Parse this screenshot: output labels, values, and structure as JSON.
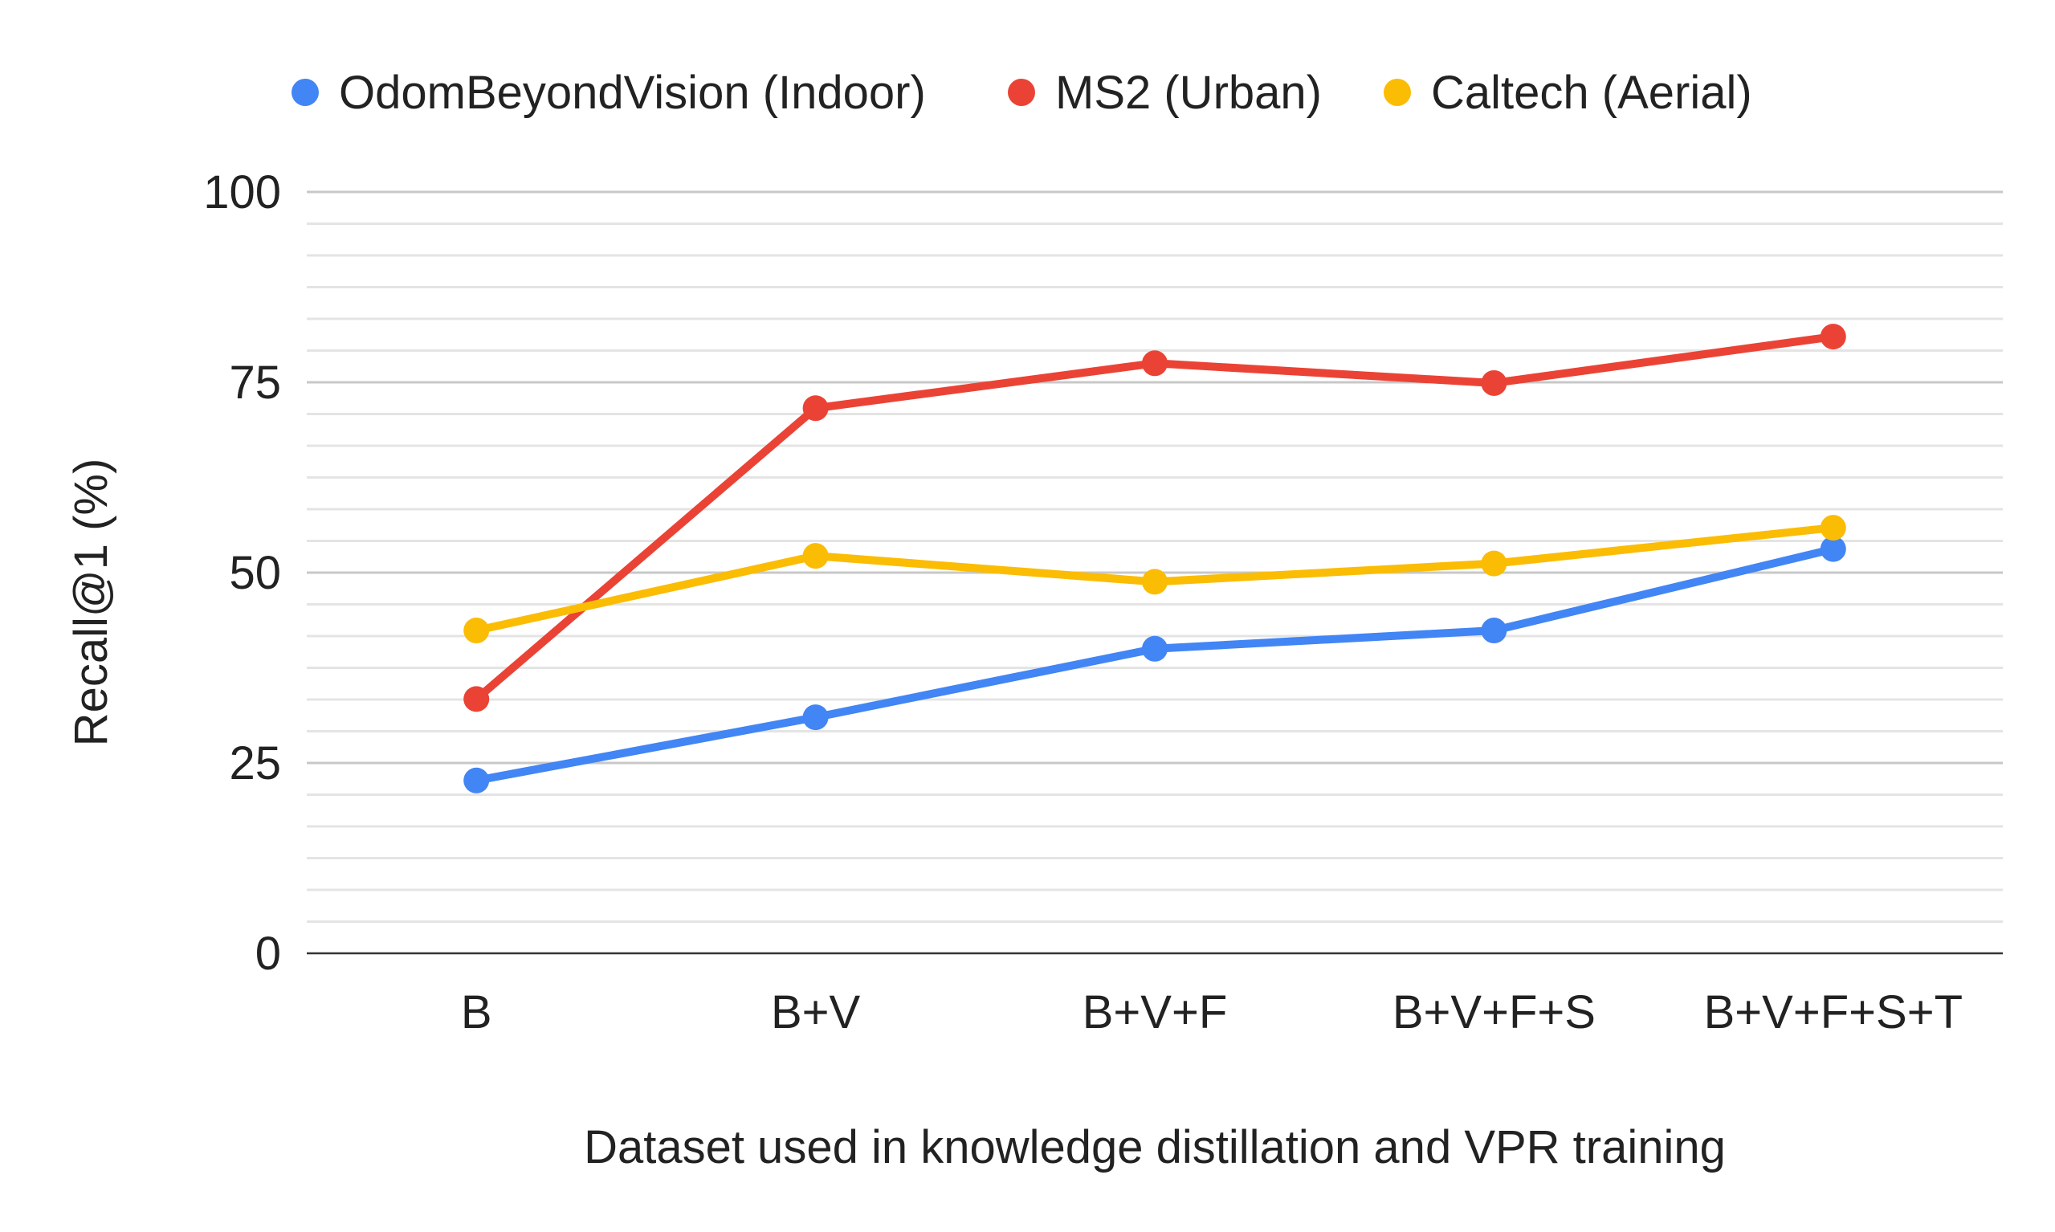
{
  "chart_data": {
    "type": "line",
    "title": "",
    "xlabel": "Dataset used in knowledge distillation and VPR training",
    "ylabel": "Recall@1 (%)",
    "categories": [
      "B",
      "B+V",
      "B+V+F",
      "B+V+F+S",
      "B+V+F+S+T"
    ],
    "ylim": [
      0,
      100
    ],
    "yticks": [
      0,
      25,
      50,
      75,
      100
    ],
    "grid": true,
    "legend": "top",
    "series": [
      {
        "name": "OdomBeyondVision (Indoor)",
        "color": "#4285F4",
        "values": [
          22.7,
          31.0,
          40.0,
          42.4,
          53.1
        ]
      },
      {
        "name": "MS2 (Urban)",
        "color": "#EA4335",
        "values": [
          33.4,
          71.6,
          77.5,
          74.9,
          81.0
        ]
      },
      {
        "name": "Caltech (Aerial)",
        "color": "#FBBC04",
        "values": [
          42.4,
          52.2,
          48.8,
          51.2,
          55.9
        ]
      }
    ]
  }
}
